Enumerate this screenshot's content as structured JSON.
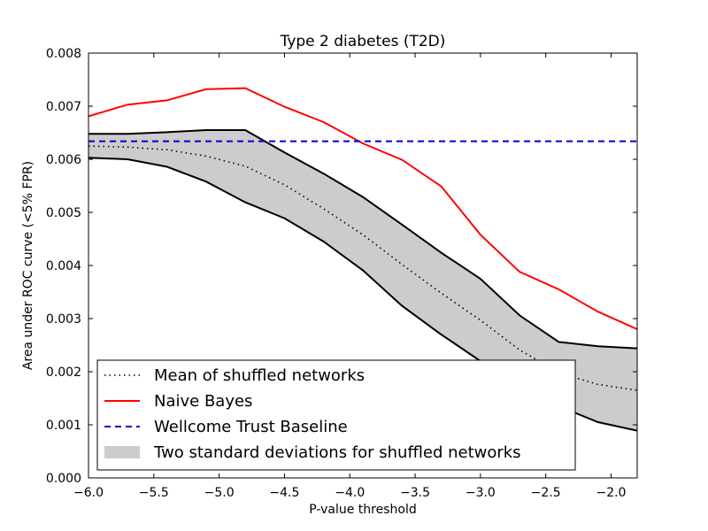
{
  "chart_data": {
    "type": "line",
    "title": "Type 2 diabetes (T2D)",
    "xlabel": "P-value threshold",
    "ylabel": "Area under ROC curve (<5% FPR)",
    "xlim": [
      -6.0,
      -1.8
    ],
    "ylim": [
      0.0,
      0.008
    ],
    "xticks": [
      -6.0,
      -5.5,
      -5.0,
      -4.5,
      -4.0,
      -3.5,
      -3.0,
      -2.5,
      -2.0
    ],
    "xtick_labels": [
      "−6.0",
      "−5.5",
      "−5.0",
      "−4.5",
      "−4.0",
      "−3.5",
      "−3.0",
      "−2.5",
      "−2.0"
    ],
    "yticks": [
      0.0,
      0.001,
      0.002,
      0.003,
      0.004,
      0.005,
      0.006,
      0.007,
      0.008
    ],
    "ytick_labels": [
      "0.000",
      "0.001",
      "0.002",
      "0.003",
      "0.004",
      "0.005",
      "0.006",
      "0.007",
      "0.008"
    ],
    "grid": false,
    "legend_position": "lower-left",
    "x": [
      -6.0,
      -5.7,
      -5.4,
      -5.1,
      -4.8,
      -4.5,
      -4.2,
      -3.9,
      -3.6,
      -3.3,
      -3.0,
      -2.7,
      -2.4,
      -2.1,
      -1.8
    ],
    "series": [
      {
        "name": "Mean of shuffled networks",
        "style": "dotted",
        "color": "#000000",
        "values": [
          0.00625,
          0.00623,
          0.00618,
          0.00606,
          0.00587,
          0.00552,
          0.00507,
          0.00458,
          0.00402,
          0.00348,
          0.00297,
          0.00241,
          0.00198,
          0.00176,
          0.00165
        ]
      },
      {
        "name": "Naive Bayes",
        "style": "solid",
        "color": "#ff0000",
        "values": [
          0.00681,
          0.00703,
          0.00711,
          0.00732,
          0.00734,
          0.00699,
          0.0067,
          0.0063,
          0.00599,
          0.00549,
          0.00458,
          0.00388,
          0.00355,
          0.00313,
          0.0028
        ]
      },
      {
        "name": "Wellcome Trust Baseline",
        "style": "dashed",
        "color": "#0000cc",
        "values": [
          0.00634,
          0.00634,
          0.00634,
          0.00634,
          0.00634,
          0.00634,
          0.00634,
          0.00634,
          0.00634,
          0.00634,
          0.00634,
          0.00634,
          0.00634,
          0.00634,
          0.00634
        ]
      }
    ],
    "band": {
      "name": "Two standard deviations for shuffled networks",
      "color": "#cccccc",
      "upper": [
        0.00648,
        0.00648,
        0.00651,
        0.00655,
        0.00655,
        0.00613,
        0.00573,
        0.00529,
        0.00477,
        0.00424,
        0.00375,
        0.00306,
        0.00256,
        0.00248,
        0.00244
      ],
      "lower": [
        0.00603,
        0.006,
        0.00586,
        0.00558,
        0.00519,
        0.00489,
        0.00445,
        0.00391,
        0.00324,
        0.0027,
        0.0022,
        0.00175,
        0.00135,
        0.00105,
        0.00089
      ]
    },
    "legend": [
      {
        "label": "Mean of shuffled networks",
        "style": "dotted",
        "color": "#000000"
      },
      {
        "label": "Naive Bayes",
        "style": "solid",
        "color": "#ff0000"
      },
      {
        "label": "Wellcome Trust Baseline",
        "style": "dashed",
        "color": "#0000cc"
      },
      {
        "label": "Two standard deviations for shuffled networks",
        "style": "patch",
        "color": "#cccccc"
      }
    ]
  }
}
